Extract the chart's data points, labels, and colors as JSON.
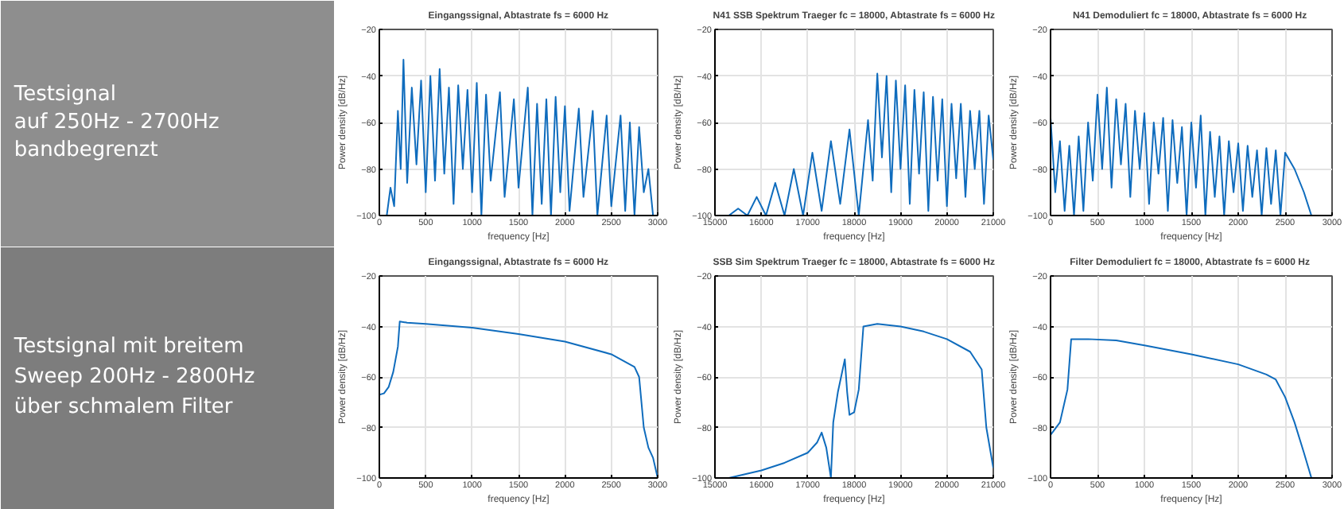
{
  "chart_data": [
    {
      "type": "other",
      "annotations": [
        "Testsignal",
        "auf 250Hz - 2700Hz",
        "bandbegrenzt"
      ]
    },
    {
      "type": "line",
      "title": "Eingangssignal, Abtastrate fs = 6000 Hz",
      "xlabel": "frequency [Hz]",
      "ylabel": "Power density [dB/Hz]",
      "xlim": [
        0,
        3000
      ],
      "xticks": [
        0,
        500,
        1000,
        1500,
        2000,
        2500,
        3000
      ],
      "ylim": [
        -100,
        -20
      ],
      "yticks": [
        -100,
        -80,
        -60,
        -40,
        -20
      ],
      "grid": true,
      "series": [
        {
          "color": "#0f6cbd",
          "x": [
            80,
            120,
            160,
            200,
            230,
            260,
            300,
            350,
            400,
            450,
            500,
            550,
            600,
            650,
            700,
            750,
            800,
            850,
            900,
            950,
            1000,
            1050,
            1100,
            1150,
            1200,
            1300,
            1350,
            1450,
            1500,
            1600,
            1650,
            1700,
            1750,
            1800,
            1850,
            1900,
            1950,
            2000,
            2050,
            2150,
            2200,
            2300,
            2350,
            2450,
            2500,
            2600,
            2650,
            2700,
            2750,
            2800,
            2850,
            2900,
            2950
          ],
          "values": [
            -100,
            -88,
            -96,
            -55,
            -80,
            -33,
            -86,
            -45,
            -78,
            -42,
            -90,
            -40,
            -85,
            -37,
            -82,
            -45,
            -95,
            -44,
            -80,
            -46,
            -90,
            -43,
            -100,
            -48,
            -85,
            -47,
            -92,
            -50,
            -88,
            -45,
            -100,
            -52,
            -95,
            -50,
            -100,
            -49,
            -90,
            -53,
            -98,
            -54,
            -92,
            -55,
            -100,
            -57,
            -96,
            -57,
            -98,
            -60,
            -100,
            -62,
            -90,
            -80,
            -100
          ]
        }
      ]
    },
    {
      "type": "line",
      "title": "N41 SSB Spektrum Traeger fc = 18000, Abtastrate fs = 6000 Hz",
      "xlabel": "frequency [Hz]",
      "ylabel": "Power density [dB/Hz]",
      "xlim": [
        15000,
        21000
      ],
      "xticks": [
        15000,
        16000,
        17000,
        18000,
        19000,
        20000,
        21000
      ],
      "ylim": [
        -100,
        -20
      ],
      "yticks": [
        -100,
        -80,
        -60,
        -40,
        -20
      ],
      "grid": true,
      "series": [
        {
          "color": "#0f6cbd",
          "x": [
            15300,
            15500,
            15700,
            15900,
            16100,
            16300,
            16500,
            16700,
            16900,
            17100,
            17300,
            17500,
            17700,
            17900,
            18100,
            18300,
            18400,
            18500,
            18600,
            18700,
            18800,
            18900,
            19000,
            19100,
            19200,
            19300,
            19400,
            19500,
            19600,
            19700,
            19800,
            19900,
            20000,
            20100,
            20200,
            20300,
            20400,
            20500,
            20600,
            20700,
            20800,
            20900,
            21000
          ],
          "values": [
            -100,
            -97,
            -100,
            -92,
            -100,
            -86,
            -100,
            -80,
            -100,
            -73,
            -98,
            -68,
            -95,
            -63,
            -100,
            -59,
            -85,
            -39,
            -75,
            -40,
            -90,
            -42,
            -80,
            -44,
            -95,
            -46,
            -82,
            -47,
            -98,
            -49,
            -85,
            -50,
            -96,
            -52,
            -84,
            -52,
            -92,
            -55,
            -80,
            -55,
            -95,
            -57,
            -76
          ]
        }
      ]
    },
    {
      "type": "line",
      "title": "N41 Demoduliert  fc = 18000, Abtastrate fs = 6000 Hz",
      "xlabel": "frequency [Hz]",
      "ylabel": "Power density [dB/Hz]",
      "xlim": [
        0,
        3000
      ],
      "xticks": [
        0,
        500,
        1000,
        1500,
        2000,
        2500,
        3000
      ],
      "ylim": [
        -100,
        -20
      ],
      "yticks": [
        -100,
        -80,
        -60,
        -40,
        -20
      ],
      "grid": true,
      "series": [
        {
          "color": "#0f6cbd",
          "x": [
            0,
            50,
            100,
            150,
            200,
            250,
            300,
            350,
            400,
            450,
            500,
            550,
            600,
            650,
            700,
            750,
            800,
            850,
            900,
            950,
            1000,
            1050,
            1100,
            1150,
            1200,
            1250,
            1300,
            1350,
            1400,
            1450,
            1500,
            1550,
            1600,
            1650,
            1700,
            1750,
            1800,
            1850,
            1900,
            1950,
            2000,
            2050,
            2100,
            2150,
            2200,
            2250,
            2300,
            2350,
            2400,
            2450,
            2500,
            2600,
            2700,
            2780
          ],
          "values": [
            -58,
            -90,
            -68,
            -98,
            -70,
            -100,
            -66,
            -98,
            -60,
            -85,
            -48,
            -80,
            -45,
            -88,
            -50,
            -78,
            -52,
            -92,
            -55,
            -80,
            -56,
            -95,
            -60,
            -82,
            -58,
            -98,
            -59,
            -86,
            -62,
            -100,
            -60,
            -88,
            -57,
            -100,
            -64,
            -92,
            -66,
            -100,
            -68,
            -90,
            -69,
            -98,
            -70,
            -92,
            -72,
            -100,
            -71,
            -95,
            -72,
            -100,
            -73,
            -80,
            -90,
            -100
          ]
        }
      ]
    },
    {
      "type": "other",
      "annotations": [
        "Testsignal mit breitem",
        "Sweep 200Hz - 2800Hz",
        "über schmalem Filter"
      ]
    },
    {
      "type": "line",
      "title": "Eingangssignal, Abtastrate fs = 6000 Hz",
      "xlabel": "frequency [Hz]",
      "ylabel": "Power density [dB/Hz]",
      "xlim": [
        0,
        3000
      ],
      "xticks": [
        0,
        500,
        1000,
        1500,
        2000,
        2500,
        3000
      ],
      "ylim": [
        -100,
        -20
      ],
      "yticks": [
        -100,
        -80,
        -60,
        -40,
        -20
      ],
      "grid": true,
      "series": [
        {
          "color": "#0f6cbd",
          "x": [
            0,
            50,
            100,
            150,
            200,
            220,
            300,
            500,
            1000,
            1500,
            2000,
            2500,
            2750,
            2800,
            2850,
            2900,
            2950,
            3000
          ],
          "values": [
            -67,
            -66.5,
            -64,
            -58,
            -48,
            -38,
            -38.5,
            -39,
            -40.5,
            -43,
            -46,
            -51,
            -56,
            -60,
            -80,
            -88,
            -92,
            -100
          ]
        }
      ]
    },
    {
      "type": "line",
      "title": "SSB Sim Spektrum Traeger fc = 18000, Abtastrate fs = 6000 Hz",
      "xlabel": "frequency [Hz]",
      "ylabel": "Power density [dB/Hz]",
      "xlim": [
        15000,
        21000
      ],
      "xticks": [
        15000,
        16000,
        17000,
        18000,
        19000,
        20000,
        21000
      ],
      "ylim": [
        -100,
        -20
      ],
      "yticks": [
        -100,
        -80,
        -60,
        -40,
        -20
      ],
      "grid": true,
      "series": [
        {
          "color": "#0f6cbd",
          "x": [
            15300,
            16000,
            16500,
            17000,
            17200,
            17300,
            17400,
            17500,
            17550,
            17650,
            17800,
            17850,
            17900,
            18000,
            18100,
            18200,
            18500,
            19000,
            19500,
            20000,
            20500,
            20750,
            20850,
            21000
          ],
          "values": [
            -100,
            -97,
            -94,
            -90,
            -86,
            -82,
            -88,
            -100,
            -78,
            -66,
            -53,
            -66,
            -75,
            -74,
            -65,
            -40,
            -39,
            -40,
            -42,
            -45,
            -50,
            -57,
            -80,
            -96
          ]
        }
      ]
    },
    {
      "type": "line",
      "title": "Filter Demoduliert  fc = 18000, Abtastrate fs = 6000 Hz",
      "xlabel": "frequency [Hz]",
      "ylabel": "Power density [dB/Hz]",
      "xlim": [
        0,
        3000
      ],
      "xticks": [
        0,
        500,
        1000,
        1500,
        2000,
        2500,
        3000
      ],
      "ylim": [
        -100,
        -20
      ],
      "yticks": [
        -100,
        -80,
        -60,
        -40,
        -20
      ],
      "grid": true,
      "series": [
        {
          "color": "#0f6cbd",
          "x": [
            0,
            100,
            180,
            220,
            400,
            700,
            1000,
            1500,
            2000,
            2300,
            2400,
            2500,
            2600,
            2700,
            2780
          ],
          "values": [
            -83,
            -78,
            -65,
            -45,
            -45,
            -45.5,
            -47.5,
            -51,
            -55,
            -59,
            -61,
            -68,
            -78,
            -90,
            -100
          ]
        }
      ]
    }
  ]
}
